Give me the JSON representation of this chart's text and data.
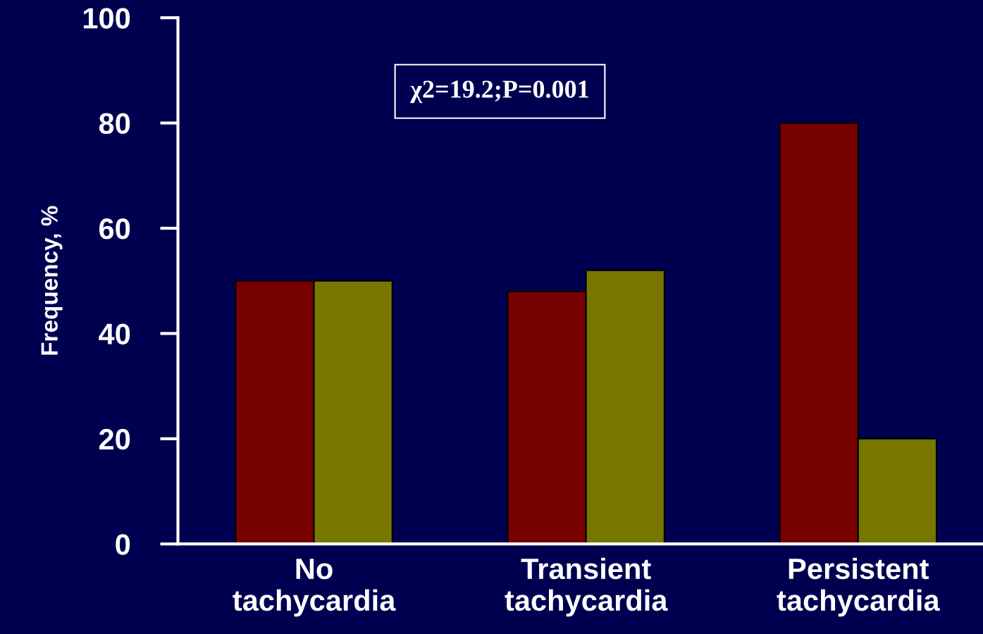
{
  "chart_data": {
    "type": "bar",
    "ylabel": "Frequency, %",
    "categories": [
      "No\ntachycardia",
      "Transient\ntachycardia",
      "Persistent\ntachycardia"
    ],
    "series": [
      {
        "color": "#770000",
        "values": [
          50,
          48,
          80
        ]
      },
      {
        "color": "#777700",
        "values": [
          50,
          52,
          20
        ]
      }
    ],
    "ylim": [
      0,
      100
    ],
    "yticks": [
      0,
      20,
      40,
      60,
      80,
      100
    ],
    "grid": false,
    "annotations": [
      "χ2=19.2;P=0.001"
    ]
  }
}
